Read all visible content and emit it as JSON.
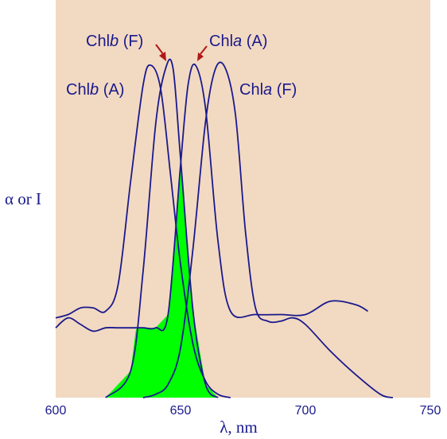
{
  "chart_data": {
    "type": "line",
    "title": "",
    "xlabel": "λ, nm",
    "ylabel": "α or I",
    "xlim": [
      600,
      750
    ],
    "ylim": [
      0,
      1
    ],
    "x_ticks": [
      "600",
      "650",
      "700",
      "750"
    ],
    "background_color": "#f2d9c2",
    "line_color": "#1a1a8c",
    "fill_color": "#00ff00",
    "fill_meaning": "overlap region between Chlb (F) emission and Chla (A) absorption",
    "series": [
      {
        "name": "Chlb (A)",
        "x": [
          600,
          605,
          610,
          615,
          620,
          625,
          630,
          635,
          638,
          642,
          646,
          650,
          655,
          660,
          665,
          670
        ],
        "y": [
          0.24,
          0.25,
          0.27,
          0.27,
          0.26,
          0.34,
          0.65,
          0.94,
          1.0,
          0.93,
          0.67,
          0.4,
          0.16,
          0.05,
          0.01,
          0.0
        ]
      },
      {
        "name": "Chlb (F)",
        "x": [
          620,
          630,
          635,
          640,
          644,
          647,
          650,
          655,
          660,
          665
        ],
        "y": [
          0.0,
          0.08,
          0.38,
          0.82,
          0.99,
          0.99,
          0.72,
          0.26,
          0.04,
          0.0
        ]
      },
      {
        "name": "Chla (A)",
        "x": [
          600,
          605,
          610,
          615,
          620,
          625,
          630,
          635,
          640,
          645,
          650,
          653,
          656,
          660,
          665,
          670,
          680,
          690,
          700,
          710,
          720,
          725
        ],
        "y": [
          0.21,
          0.24,
          0.22,
          0.2,
          0.21,
          0.21,
          0.21,
          0.21,
          0.21,
          0.25,
          0.7,
          0.94,
          1.0,
          0.87,
          0.47,
          0.26,
          0.25,
          0.25,
          0.25,
          0.29,
          0.28,
          0.26
        ]
      },
      {
        "name": "Chla (F)",
        "x": [
          635,
          640,
          645,
          650,
          655,
          660,
          664,
          668,
          672,
          676,
          680,
          685,
          690,
          695,
          700,
          710,
          720,
          730,
          735
        ],
        "y": [
          0.0,
          0.01,
          0.04,
          0.15,
          0.45,
          0.83,
          0.99,
          0.99,
          0.85,
          0.5,
          0.27,
          0.23,
          0.23,
          0.24,
          0.22,
          0.14,
          0.07,
          0.01,
          0.0
        ]
      }
    ],
    "annotations": [
      {
        "prefix": "Chl",
        "italic": "b",
        "suffix": " (F)"
      },
      {
        "prefix": "Chl",
        "italic": "a",
        "suffix": " (A)"
      },
      {
        "prefix": "Chl",
        "italic": "b",
        "suffix": " (A)"
      },
      {
        "prefix": "Chl",
        "italic": "a",
        "suffix": " (F)"
      }
    ]
  }
}
